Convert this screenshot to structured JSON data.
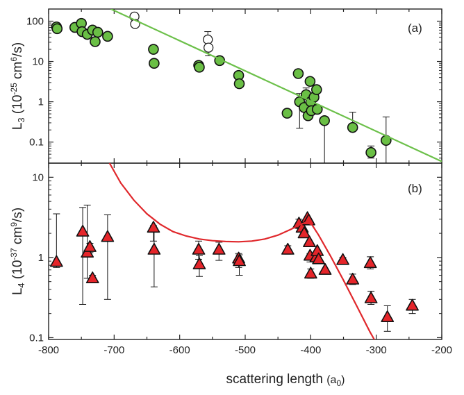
{
  "chart_data": [
    {
      "panel": "a",
      "type": "scatter",
      "panel_label": "(a)",
      "ylabel": {
        "main": "L",
        "sub": "3",
        "rest": " (10",
        "exp": "-25",
        "unit": " cm",
        "unit_exp": "6",
        "end": "/s)"
      },
      "yscale": "log",
      "ylim": [
        0.03,
        200
      ],
      "xlim": [
        -800,
        -200
      ],
      "y_ticks": [
        {
          "v": 100,
          "label": "100"
        },
        {
          "v": 10,
          "label": "10"
        },
        {
          "v": 1,
          "label": "1"
        },
        {
          "v": 0.1,
          "label": "0.1"
        }
      ],
      "series": [
        {
          "style": "filled-green-circle",
          "points": [
            {
              "x": -788,
              "y": 72
            },
            {
              "x": -787,
              "y": 65
            },
            {
              "x": -760,
              "y": 70
            },
            {
              "x": -750,
              "y": 88
            },
            {
              "x": -749,
              "y": 55
            },
            {
              "x": -741,
              "y": 47
            },
            {
              "x": -733,
              "y": 60
            },
            {
              "x": -729,
              "y": 31
            },
            {
              "x": -725,
              "y": 53
            },
            {
              "x": -710,
              "y": 42
            },
            {
              "x": -640,
              "y": 20
            },
            {
              "x": -639,
              "y": 9
            },
            {
              "x": -571,
              "y": 8
            },
            {
              "x": -570,
              "y": 7.2
            },
            {
              "x": -539,
              "y": 10.5
            },
            {
              "x": -510,
              "y": 4.5
            },
            {
              "x": -509,
              "y": 2.8
            },
            {
              "x": -436,
              "y": 0.52,
              "err": [
                0.42,
                0.62
              ]
            },
            {
              "x": -419,
              "y": 5
            },
            {
              "x": -417,
              "y": 1.0,
              "err": [
                0.22,
                1.6
              ]
            },
            {
              "x": -410,
              "y": 0.72
            },
            {
              "x": -407,
              "y": 1.5,
              "err": [
                0.45,
                2.2
              ]
            },
            {
              "x": -404,
              "y": 0.45
            },
            {
              "x": -401,
              "y": 3.2
            },
            {
              "x": -400,
              "y": 1.0,
              "err": [
                0.6,
                1.3
              ]
            },
            {
              "x": -399,
              "y": 0.6
            },
            {
              "x": -395,
              "y": 1.3
            },
            {
              "x": -391,
              "y": 2.0
            },
            {
              "x": -390,
              "y": 0.65,
              "err": [
                0.58,
                0.8
              ]
            },
            {
              "x": -379,
              "y": 0.34,
              "err": [
                0.028,
                0.4
              ]
            },
            {
              "x": -336,
              "y": 0.23,
              "err": [
                0.2,
                0.55
              ]
            },
            {
              "x": -308,
              "y": 0.055,
              "err": [
                0.04,
                0.08
              ]
            },
            {
              "x": -285,
              "y": 0.11,
              "err": [
                0.028,
                0.42
              ]
            }
          ]
        },
        {
          "style": "open-circle",
          "points": [
            {
              "x": -669,
              "y": 130
            },
            {
              "x": -668,
              "y": 85
            },
            {
              "x": -557,
              "y": 35,
              "err": [
                24,
                55
              ]
            },
            {
              "x": -556,
              "y": 22,
              "err": [
                14,
                38
              ]
            }
          ]
        },
        {
          "style": "green-line",
          "points": [
            {
              "x": -705,
              "y": 200
            },
            {
              "x": -200,
              "y": 0.033
            }
          ]
        }
      ]
    },
    {
      "panel": "b",
      "type": "scatter",
      "panel_label": "(b)",
      "ylabel": {
        "main": "L",
        "sub": "4",
        "rest": " (10",
        "exp": "-37",
        "unit": " cm",
        "unit_exp": "9",
        "end": "/s)"
      },
      "yscale": "log",
      "ylim": [
        0.095,
        15
      ],
      "xlim": [
        -800,
        -200
      ],
      "y_ticks": [
        {
          "v": 10,
          "label": "10"
        },
        {
          "v": 1,
          "label": "1"
        },
        {
          "v": 0.1,
          "label": "0.1"
        }
      ],
      "x_ticks": [
        {
          "v": -800,
          "label": "-800"
        },
        {
          "v": -700,
          "label": "-700"
        },
        {
          "v": -600,
          "label": "-600"
        },
        {
          "v": -500,
          "label": "-500"
        },
        {
          "v": -400,
          "label": "-400"
        },
        {
          "v": -300,
          "label": "-300"
        },
        {
          "v": -200,
          "label": "-200"
        }
      ],
      "xlabel": {
        "main": "scattering length ",
        "paren": "(a",
        "sub": "0",
        "end": ")"
      },
      "series": [
        {
          "style": "red-triangle",
          "points": [
            {
              "x": -788,
              "y": 0.88,
              "err": [
                0.75,
                3.5
              ]
            },
            {
              "x": -748,
              "y": 2.1,
              "err": [
                0.26,
                4.2
              ]
            },
            {
              "x": -741,
              "y": 1.15,
              "err": [
                0.55,
                4.5
              ]
            },
            {
              "x": -737,
              "y": 1.35,
              "err": [
                1.15,
                1.5
              ]
            },
            {
              "x": -733,
              "y": 0.55,
              "err": [
                0.5,
                0.6
              ]
            },
            {
              "x": -710,
              "y": 1.8,
              "err": [
                0.3,
                3.4
              ]
            },
            {
              "x": -640,
              "y": 2.35,
              "err": [
                1.6,
                2.5
              ]
            },
            {
              "x": -639,
              "y": 1.25,
              "err": [
                0.43,
                2.2
              ]
            },
            {
              "x": -571,
              "y": 1.25,
              "err": [
                0.95,
                1.6
              ]
            },
            {
              "x": -570,
              "y": 0.82,
              "err": [
                0.58,
                1.05
              ]
            },
            {
              "x": -540,
              "y": 1.25,
              "err": [
                0.92,
                1.55
              ]
            },
            {
              "x": -510,
              "y": 0.97,
              "err": [
                0.75,
                1.12
              ]
            },
            {
              "x": -509,
              "y": 0.9,
              "err": [
                0.6,
                1.08
              ]
            },
            {
              "x": -435,
              "y": 1.25,
              "err": [
                1.1,
                1.4
              ]
            },
            {
              "x": -418,
              "y": 2.65,
              "err": [
                2.3,
                3.0
              ]
            },
            {
              "x": -413,
              "y": 2.35
            },
            {
              "x": -410,
              "y": 2.0
            },
            {
              "x": -405,
              "y": 3.1
            },
            {
              "x": -403,
              "y": 2.9
            },
            {
              "x": -402,
              "y": 1.55
            },
            {
              "x": -401,
              "y": 1.05,
              "err": [
                0.88,
                1.12
              ]
            },
            {
              "x": -400,
              "y": 0.63,
              "err": [
                0.55,
                0.72
              ]
            },
            {
              "x": -392,
              "y": 1.0
            },
            {
              "x": -390,
              "y": 1.2
            },
            {
              "x": -388,
              "y": 0.95
            },
            {
              "x": -378,
              "y": 0.7
            },
            {
              "x": -351,
              "y": 0.93,
              "err": [
                0.82,
                1.0
              ]
            },
            {
              "x": -336,
              "y": 0.53,
              "err": [
                0.46,
                0.62
              ]
            },
            {
              "x": -309,
              "y": 0.85,
              "err": [
                0.72,
                1.02
              ]
            },
            {
              "x": -308,
              "y": 0.31,
              "err": [
                0.26,
                0.38
              ]
            },
            {
              "x": -283,
              "y": 0.18,
              "err": [
                0.12,
                0.25
              ]
            },
            {
              "x": -245,
              "y": 0.25,
              "err": [
                0.2,
                0.3
              ]
            }
          ]
        },
        {
          "style": "red-curve",
          "points": [
            {
              "x": -707,
              "y": 15
            },
            {
              "x": -690,
              "y": 8.5
            },
            {
              "x": -670,
              "y": 5.2
            },
            {
              "x": -650,
              "y": 3.5
            },
            {
              "x": -630,
              "y": 2.6
            },
            {
              "x": -610,
              "y": 2.1
            },
            {
              "x": -590,
              "y": 1.85
            },
            {
              "x": -570,
              "y": 1.7
            },
            {
              "x": -550,
              "y": 1.62
            },
            {
              "x": -530,
              "y": 1.58
            },
            {
              "x": -510,
              "y": 1.57
            },
            {
              "x": -490,
              "y": 1.6
            },
            {
              "x": -470,
              "y": 1.7
            },
            {
              "x": -450,
              "y": 1.9
            },
            {
              "x": -430,
              "y": 2.25
            },
            {
              "x": -415,
              "y": 2.6
            },
            {
              "x": -406,
              "y": 2.75
            },
            {
              "x": -398,
              "y": 2.55
            },
            {
              "x": -388,
              "y": 1.9
            },
            {
              "x": -370,
              "y": 1.05
            },
            {
              "x": -350,
              "y": 0.52
            },
            {
              "x": -330,
              "y": 0.25
            },
            {
              "x": -310,
              "y": 0.12
            },
            {
              "x": -303,
              "y": 0.095
            }
          ]
        }
      ]
    }
  ],
  "colors": {
    "green_fill": "#6abf45",
    "green_line": "#6cc04a",
    "red_fill": "#e5252a",
    "red_line": "#e0282c",
    "axis": "#222222"
  }
}
